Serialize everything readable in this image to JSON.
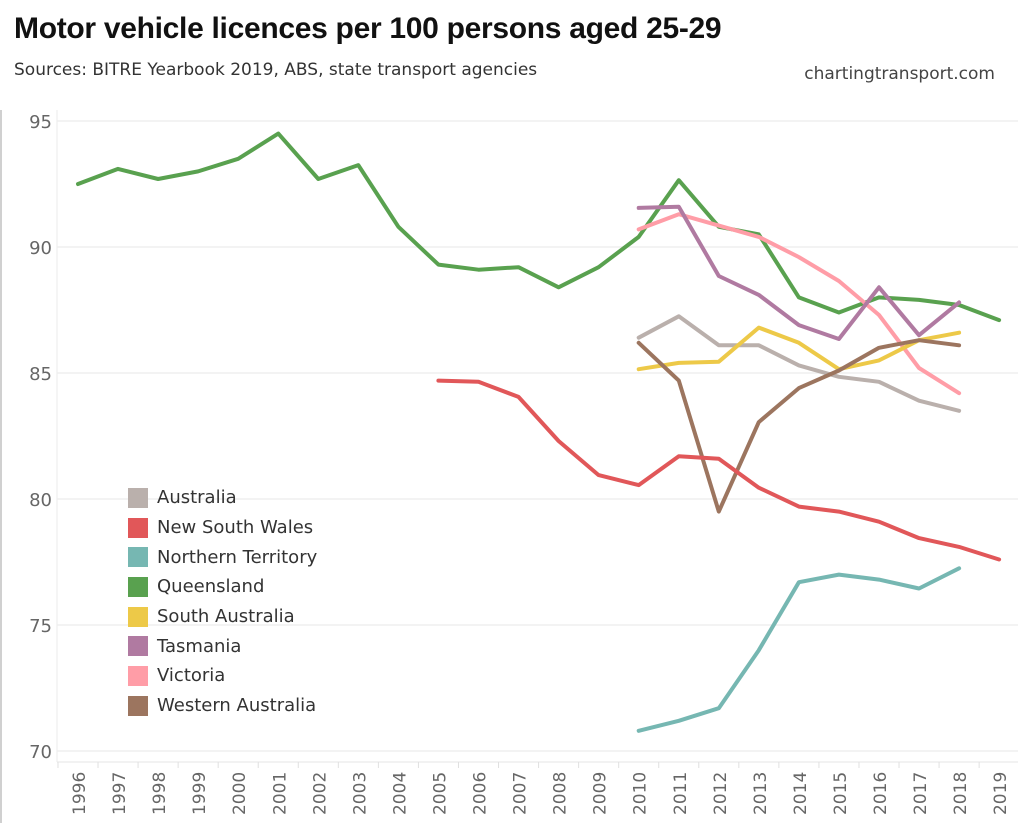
{
  "header": {
    "title": "Motor vehicle licences per 100 persons aged 25-29",
    "subtitle": "Sources: BITRE Yearbook 2019, ABS, state transport agencies",
    "brand": "chartingtransport.com"
  },
  "chart_data": {
    "type": "line",
    "title": "Motor vehicle licences per 100 persons aged 25-29",
    "subtitle": "Sources: BITRE Yearbook 2019, ABS, state transport agencies",
    "xlabel": "",
    "ylabel": "",
    "x": [
      1996,
      1997,
      1998,
      1999,
      2000,
      2001,
      2002,
      2003,
      2004,
      2005,
      2006,
      2007,
      2008,
      2009,
      2010,
      2011,
      2012,
      2013,
      2014,
      2015,
      2016,
      2017,
      2018,
      2019
    ],
    "x_tick_labels": [
      "1996",
      "1997",
      "1998",
      "1999",
      "2000",
      "2001",
      "2002",
      "2003",
      "2004",
      "2005",
      "2006",
      "2007",
      "2008",
      "2009",
      "2010",
      "2011",
      "2012",
      "2013",
      "2014",
      "2015",
      "2016",
      "2017",
      "2018",
      "2019"
    ],
    "ylim": [
      69.5,
      96.5
    ],
    "y_ticks": [
      70,
      75,
      80,
      85,
      90,
      95
    ],
    "grid": true,
    "legend_position": "bottom-left",
    "series": [
      {
        "name": "Australia",
        "color": "#bab0ac",
        "x": [
          2010,
          2011,
          2012,
          2013,
          2014,
          2015,
          2016,
          2017,
          2018
        ],
        "values": [
          86.4,
          87.25,
          86.1,
          86.1,
          85.3,
          84.85,
          84.65,
          83.9,
          83.5
        ]
      },
      {
        "name": "New South Wales",
        "color": "#e15759",
        "x": [
          2005,
          2006,
          2007,
          2008,
          2009,
          2010,
          2011,
          2012,
          2013,
          2014,
          2015,
          2016,
          2017,
          2018,
          2019
        ],
        "values": [
          84.7,
          84.65,
          84.05,
          82.3,
          80.95,
          80.55,
          81.7,
          81.6,
          80.45,
          79.7,
          79.5,
          79.1,
          78.45,
          78.1,
          77.6
        ]
      },
      {
        "name": "Northern Territory",
        "color": "#76b7b2",
        "x": [
          2010,
          2011,
          2012,
          2013,
          2014,
          2015,
          2016,
          2017,
          2018
        ],
        "values": [
          70.8,
          71.2,
          71.7,
          74.0,
          76.7,
          77.0,
          76.8,
          76.45,
          77.25
        ]
      },
      {
        "name": "Queensland",
        "color": "#59a14f",
        "x": [
          1996,
          1997,
          1998,
          1999,
          2000,
          2001,
          2002,
          2003,
          2004,
          2005,
          2006,
          2007,
          2008,
          2009,
          2010,
          2011,
          2012,
          2013,
          2014,
          2015,
          2016,
          2017,
          2018,
          2019
        ],
        "values": [
          92.5,
          93.1,
          92.7,
          93.0,
          93.5,
          94.5,
          92.7,
          93.25,
          90.8,
          89.3,
          89.1,
          89.2,
          88.4,
          89.2,
          90.4,
          92.65,
          90.8,
          90.5,
          88.0,
          87.4,
          88.0,
          87.9,
          87.7,
          87.1
        ]
      },
      {
        "name": "South Australia",
        "color": "#edc948",
        "x": [
          2010,
          2011,
          2012,
          2013,
          2014,
          2015,
          2016,
          2017,
          2018
        ],
        "values": [
          85.15,
          85.4,
          85.45,
          86.8,
          86.2,
          85.15,
          85.5,
          86.3,
          86.6
        ]
      },
      {
        "name": "Tasmania",
        "color": "#b07aa1",
        "x": [
          2010,
          2011,
          2012,
          2013,
          2014,
          2015,
          2016,
          2017,
          2018
        ],
        "values": [
          91.55,
          91.6,
          88.85,
          88.1,
          86.9,
          86.35,
          88.4,
          86.5,
          87.8
        ]
      },
      {
        "name": "Victoria",
        "color": "#ff9da7",
        "x": [
          2010,
          2011,
          2012,
          2013,
          2014,
          2015,
          2016,
          2017,
          2018
        ],
        "values": [
          90.7,
          91.3,
          90.85,
          90.4,
          89.6,
          88.65,
          87.3,
          85.2,
          84.2
        ]
      },
      {
        "name": "Western Australia",
        "color": "#9c755f",
        "x": [
          2010,
          2011,
          2012,
          2013,
          2014,
          2015,
          2016,
          2017,
          2018
        ],
        "values": [
          86.2,
          84.7,
          79.5,
          83.05,
          84.4,
          85.1,
          86.0,
          86.3,
          86.1
        ]
      }
    ]
  }
}
